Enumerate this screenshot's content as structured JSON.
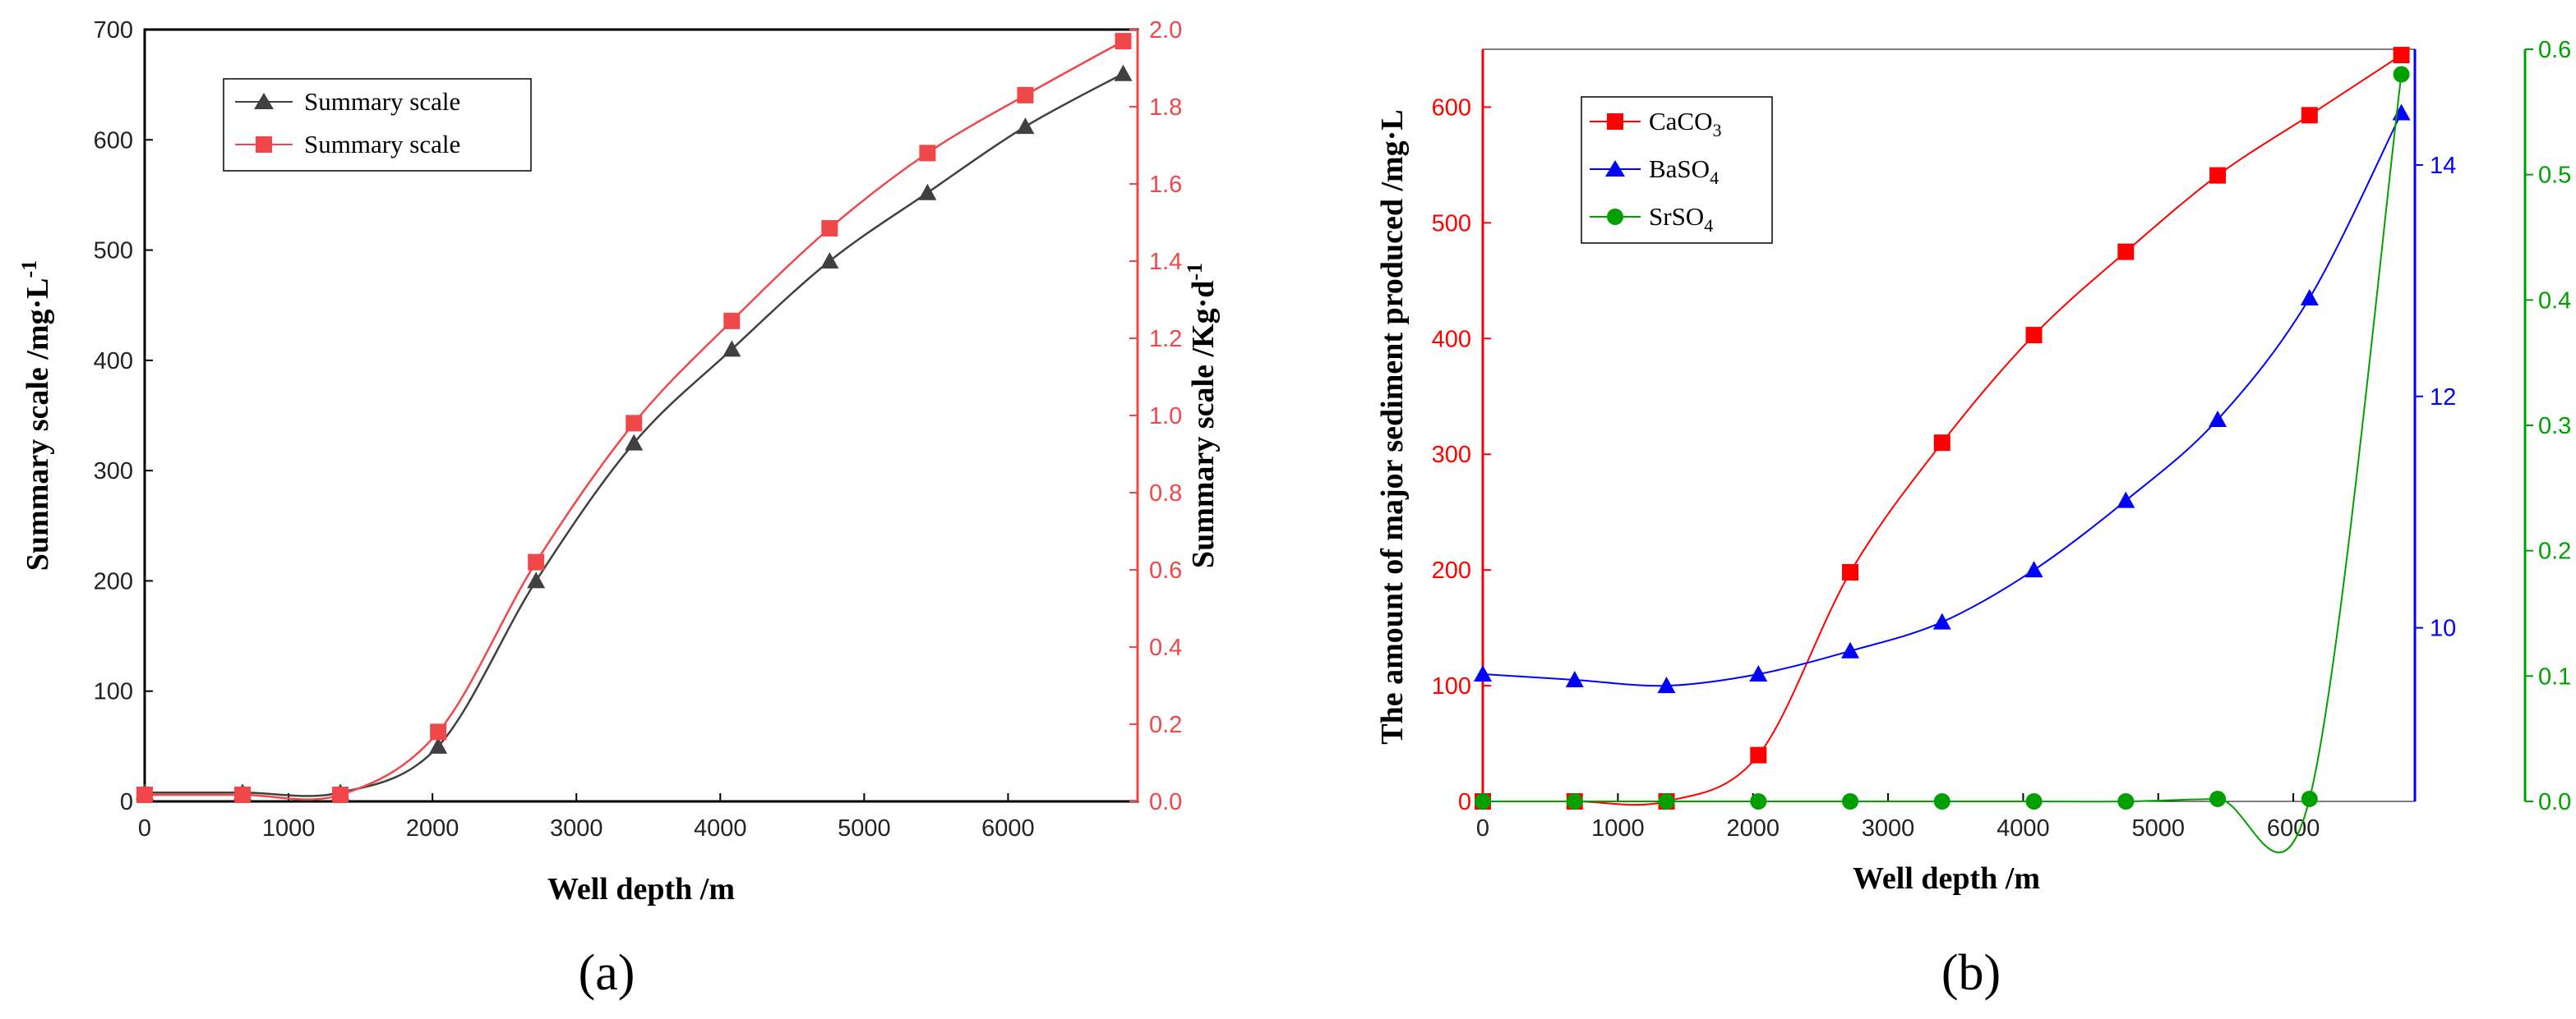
{
  "chart_data": [
    {
      "type": "line",
      "panel_label": "(a)",
      "xlabel": "Well depth /m",
      "x_ticks": [
        "0",
        "1000",
        "2000",
        "3000",
        "4000",
        "5000",
        "6000"
      ],
      "xlim": [
        0,
        6900
      ],
      "ylabel_left": "Summary scale /mg·L-1",
      "ylabel_left_main": "Summary scale /mg·L",
      "ylabel_left_sup": "-1",
      "ylim_left": [
        0,
        700
      ],
      "y_left_ticks": [
        "0",
        "100",
        "200",
        "300",
        "400",
        "500",
        "600",
        "700"
      ],
      "ylabel_right": "Summary scale /Kg·d-1",
      "ylabel_right_main": "Summary scale /Kg·d",
      "ylabel_right_sup": "-1",
      "ylim_right": [
        0,
        2.0
      ],
      "y_right_ticks": [
        "0.0",
        "0.2",
        "0.4",
        "0.6",
        "0.8",
        "1.0",
        "1.2",
        "1.4",
        "1.6",
        "1.8",
        "2.0"
      ],
      "legend_position": "top-left",
      "series": [
        {
          "name": "Summary scale",
          "axis": "left",
          "marker": "triangle",
          "color": "#404040",
          "x": [
            0,
            680,
            1360,
            2040,
            2720,
            3400,
            4080,
            4760,
            5440,
            6120,
            6800
          ],
          "values": [
            8,
            8,
            8,
            50,
            200,
            325,
            410,
            490,
            552,
            612,
            660
          ]
        },
        {
          "name": "Summary scale",
          "axis": "right",
          "marker": "square",
          "color": "#f0474a",
          "x": [
            0,
            680,
            1360,
            2040,
            2720,
            3400,
            4080,
            4760,
            5440,
            6120,
            6800
          ],
          "values": [
            0.017,
            0.017,
            0.017,
            0.18,
            0.62,
            0.98,
            1.245,
            1.485,
            1.68,
            1.83,
            1.97
          ]
        }
      ]
    },
    {
      "type": "line",
      "panel_label": "(b)",
      "xlabel": "Well depth /m",
      "x_ticks": [
        "0",
        "1000",
        "2000",
        "3000",
        "4000",
        "5000",
        "6000"
      ],
      "xlim": [
        0,
        6900
      ],
      "ylabel_left": "The amount of major sediment produced /mg·L",
      "ylim_left": [
        0,
        650
      ],
      "y_left_ticks": [
        "0",
        "100",
        "200",
        "300",
        "400",
        "500",
        "600"
      ],
      "ylim_right_blue": [
        8.5,
        15.0
      ],
      "y_right_blue_ticks": [
        "10",
        "12",
        "14"
      ],
      "ylim_right_green": [
        0,
        0.6
      ],
      "y_right_green_ticks": [
        "0.0",
        "0.1",
        "0.2",
        "0.3",
        "0.4",
        "0.5",
        "0.6"
      ],
      "legend_position": "top-left",
      "series": [
        {
          "name": "CaCO3",
          "label_main": "CaCO",
          "label_sub": "3",
          "axis": "left",
          "marker": "square",
          "color": "#ff0000",
          "x": [
            0,
            680,
            1360,
            2040,
            2720,
            3400,
            4080,
            4760,
            5440,
            6120,
            6800
          ],
          "values": [
            0,
            0,
            0,
            40,
            198,
            310,
            403,
            475,
            541,
            593,
            645
          ]
        },
        {
          "name": "BaSO4",
          "label_main": "BaSO",
          "label_sub": "4",
          "axis": "right-blue",
          "marker": "triangle",
          "color": "#0000ff",
          "x": [
            0,
            680,
            1360,
            2040,
            2720,
            3400,
            4080,
            4760,
            5440,
            6120,
            6800
          ],
          "values": [
            9.6,
            9.55,
            9.5,
            9.6,
            9.8,
            10.05,
            10.5,
            11.1,
            11.8,
            12.85,
            14.45
          ]
        },
        {
          "name": "SrSO4",
          "label_main": "SrSO",
          "label_sub": "4",
          "axis": "right-green",
          "marker": "circle",
          "color": "#00a000",
          "x": [
            0,
            680,
            1360,
            2040,
            2720,
            3400,
            4080,
            4760,
            5440,
            6120,
            6800
          ],
          "values": [
            0,
            0,
            0,
            0,
            0,
            0,
            0,
            0,
            0.002,
            0.002,
            0.58
          ]
        }
      ]
    }
  ]
}
